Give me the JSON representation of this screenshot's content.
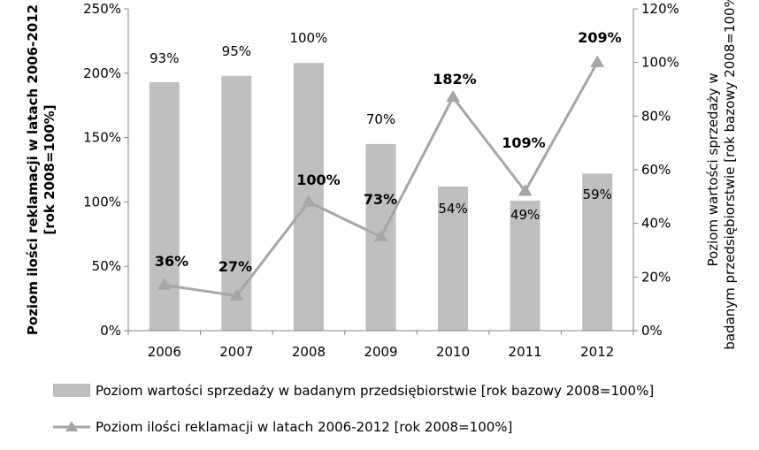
{
  "chart_data": {
    "type": "bar",
    "categories": [
      "2006",
      "2007",
      "2008",
      "2009",
      "2010",
      "2011",
      "2012"
    ],
    "series": [
      {
        "name": "Poziom wartości sprzedaży w badanym przedsiębiorstwie [rok bazowy 2008=100%]",
        "kind": "bar",
        "axis": "left",
        "values": [
          193,
          198,
          208,
          145,
          112,
          101,
          122
        ],
        "labels": [
          "93%",
          "95%",
          "100%",
          "70%",
          "54%",
          "49%",
          "59%"
        ],
        "color": "#bfbfbf"
      },
      {
        "name": "Poziom ilości reklamacji w latach 2006-2012 [rok 2008=100%]",
        "kind": "line",
        "axis": "right",
        "marker": "triangle",
        "values": [
          17,
          13,
          48,
          35,
          87,
          52,
          100
        ],
        "labels": [
          "36%",
          "27%",
          "100%",
          "73%",
          "182%",
          "109%",
          "209%"
        ],
        "color": "#a6a6a6"
      }
    ],
    "ylabel": "Poziom ilości reklamacji w latach 2006-2012 [rok 2008=100%]",
    "y2label": "Poziom wartości sprzedaży w badanym przedsiębiorstwie [rok bazowy 2008=100%]",
    "ylim": [
      0,
      250
    ],
    "y2lim": [
      0,
      120
    ],
    "yticks": [
      "0%",
      "50%",
      "100%",
      "150%",
      "200%",
      "250%"
    ],
    "y2ticks": [
      "0%",
      "20%",
      "40%",
      "60%",
      "80%",
      "100%",
      "120%"
    ],
    "grid": false,
    "legend_position": "bottom"
  }
}
